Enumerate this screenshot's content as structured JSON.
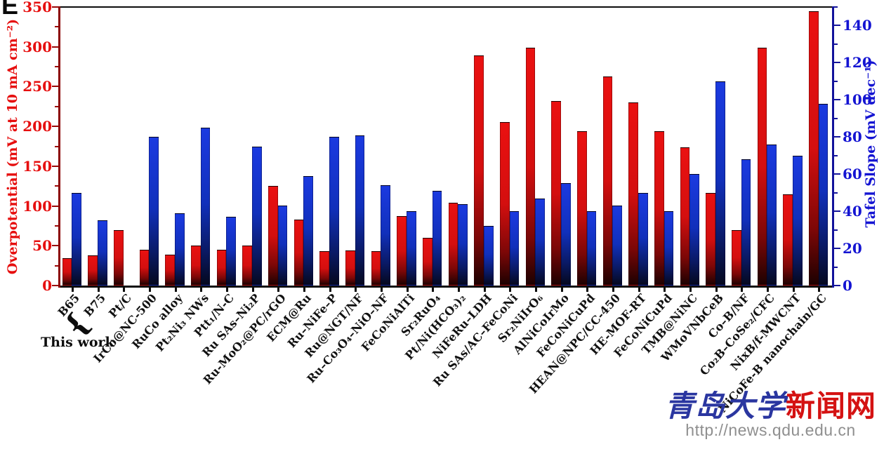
{
  "panel_label": "E",
  "annotations": {
    "this_work_label": "This work",
    "brace_glyph": "{"
  },
  "watermark": {
    "title_blue": "青岛大学",
    "title_red": "新闻网",
    "url": "http://news.qdu.edu.cn"
  },
  "chart_data": {
    "type": "bar",
    "title": "",
    "categories": [
      "B65",
      "B75",
      "Pt/C",
      "IrCo@NC-500",
      "RuCo alloy",
      "Pt₂Ni₃ NWs",
      "Ptt₁/N-C",
      "Ru SAs–Ni₂P",
      "Ru-MoO₂@PC/rGO",
      "ECM@Ru",
      "Ru–NiFe–P",
      "Ru@NGT/NF",
      "Ru–Co₃O₄–NiO–NF",
      "FeCoNiAlTi",
      "Sr₂RuO₄",
      "Pt/Ni(HCO₃)₂",
      "NiFeRu–LDH",
      "Ru SAs/AC–FeCoNi",
      "Sr₂NiIrO₆",
      "AlNiCoIrMo",
      "FeCoNiCuPd",
      "HEAN@NPC/CC-450",
      "HE-MOF-RT",
      "FeCoNiCuPd",
      "TMB@NiNC",
      "WMoVNbCeB",
      "Co–B/NF",
      "Co₂B–CoSe₂/CFC",
      "NixB/f-MWCNT",
      "NiCoFe-B nanochain/GC"
    ],
    "series": [
      {
        "name": "Overpotential",
        "axis": "left",
        "values": [
          34,
          38,
          70,
          45,
          39,
          50,
          45,
          50,
          125,
          83,
          43,
          44,
          43,
          87,
          60,
          104,
          289,
          205,
          299,
          232,
          194,
          263,
          230,
          194,
          174,
          116,
          70,
          299,
          115,
          345
        ]
      },
      {
        "name": "Tafel Slope",
        "axis": "right",
        "values": [
          50,
          35,
          null,
          80,
          39,
          85,
          37,
          75,
          43,
          59,
          80,
          81,
          54,
          40,
          51,
          44,
          32,
          40,
          47,
          55,
          40,
          43,
          50,
          40,
          60,
          110,
          68,
          76,
          70,
          98
        ]
      }
    ],
    "left_axis": {
      "title": "Overpotential (mV at 10 mA cm⁻²)",
      "min": 0,
      "max": 350,
      "major_tick_step": 50,
      "minor_tick_step": 25,
      "tick_labels": [
        "0",
        "50",
        "100",
        "150",
        "200",
        "250",
        "300",
        "350"
      ],
      "color": "#e60f0f"
    },
    "right_axis": {
      "title": "Tafel Slope (mV dec⁻¹)",
      "min": 0,
      "max": 150,
      "major_tick_step": 20,
      "minor_tick_step": 10,
      "tick_labels": [
        "0",
        "20",
        "40",
        "60",
        "80",
        "100",
        "120",
        "140"
      ],
      "color": "#1414d2"
    },
    "bar_colors": {
      "overpotential_top": "#ea1111",
      "overpotential_bottom": "#1c0101",
      "tafel_top": "#1b3ae0",
      "tafel_bottom": "#05081e"
    },
    "grid": "off",
    "legend": "none"
  }
}
